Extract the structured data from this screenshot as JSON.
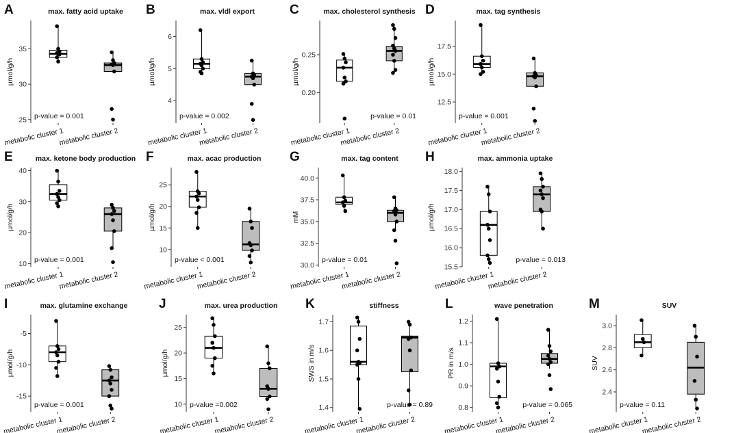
{
  "colors": {
    "box1": "#ffffff",
    "box2": "#bdbdbd",
    "point": "#000000",
    "axis": "#333333"
  },
  "chart_data": [
    {
      "type": "box",
      "panel_label": "A",
      "title": "max. fatty acid uptake",
      "ylabel": "µmol/g/h",
      "ylim": [
        24.5,
        39
      ],
      "yticks": [
        25,
        30,
        35
      ],
      "ytick_labels": [
        "25",
        "30",
        "35"
      ],
      "pvalue": "p-value = 0.001",
      "pvalue_position": "bottom-left",
      "categories": [
        "metabolic cluster 1",
        "metabolic cluster 2"
      ],
      "groups": [
        {
          "name": "metabolic cluster 1",
          "min": 33.2,
          "q1": 33.8,
          "median": 34.3,
          "q3": 34.8,
          "max": 38.2,
          "points": [
            38.2,
            35.0,
            34.6,
            34.4,
            34.3,
            34.2,
            33.8,
            33.2
          ]
        },
        {
          "name": "metabolic cluster 2",
          "min": 31.8,
          "q1": 31.8,
          "median": 32.7,
          "q3": 33.0,
          "max": 34.5,
          "points": [
            34.5,
            33.4,
            33.0,
            32.8,
            32.7,
            31.8,
            26.5,
            25.0
          ]
        }
      ]
    },
    {
      "type": "box",
      "panel_label": "B",
      "title": "max. vldl export",
      "ylabel": "µmol/g/h",
      "ylim": [
        3.3,
        6.5
      ],
      "yticks": [
        4,
        5,
        6
      ],
      "ytick_labels": [
        "4",
        "5",
        "6"
      ],
      "pvalue": "p-value = 0.002",
      "pvalue_position": "bottom-left",
      "categories": [
        "metabolic cluster 1",
        "metabolic cluster 2"
      ],
      "groups": [
        {
          "name": "metabolic cluster 1",
          "min": 4.85,
          "q1": 5.0,
          "median": 5.15,
          "q3": 5.3,
          "max": 6.2,
          "points": [
            6.2,
            5.3,
            5.2,
            5.15,
            5.1,
            5.0,
            4.9,
            4.85
          ]
        },
        {
          "name": "metabolic cluster 2",
          "min": 4.5,
          "q1": 4.5,
          "median": 4.75,
          "q3": 4.85,
          "max": 5.25,
          "points": [
            5.25,
            4.85,
            4.8,
            4.75,
            4.7,
            4.5,
            3.9,
            3.4
          ]
        }
      ]
    },
    {
      "type": "box",
      "panel_label": "C",
      "title": "max. cholesterol synthesis",
      "ylabel": "µmol/g/h",
      "ylim": [
        0.16,
        0.295
      ],
      "yticks": [
        0.2,
        0.25
      ],
      "ytick_labels": [
        "0.20",
        "0.25"
      ],
      "pvalue": "p-value = 0.01",
      "pvalue_position": "bottom-right",
      "categories": [
        "metabolic cluster 1",
        "metabolic cluster 2"
      ],
      "groups": [
        {
          "name": "metabolic cluster 1",
          "min": 0.212,
          "q1": 0.215,
          "median": 0.233,
          "q3": 0.243,
          "max": 0.251,
          "points": [
            0.251,
            0.245,
            0.24,
            0.233,
            0.22,
            0.215,
            0.212,
            0.166
          ]
        },
        {
          "name": "metabolic cluster 2",
          "min": 0.226,
          "q1": 0.242,
          "median": 0.255,
          "q3": 0.261,
          "max": 0.289,
          "points": [
            0.289,
            0.284,
            0.272,
            0.262,
            0.258,
            0.255,
            0.25,
            0.242,
            0.23,
            0.226
          ]
        }
      ]
    },
    {
      "type": "box",
      "panel_label": "D",
      "title": "max. tag synthesis",
      "ylabel": "µmol/g/h",
      "ylim": [
        10.6,
        19.8
      ],
      "yticks": [
        12.5,
        15,
        17.5
      ],
      "ytick_labels": [
        "12.5",
        "15.0",
        "17.5"
      ],
      "pvalue": "p-value = 0.001",
      "pvalue_position": "bottom-left",
      "categories": [
        "metabolic cluster 1",
        "metabolic cluster 2"
      ],
      "groups": [
        {
          "name": "metabolic cluster 1",
          "min": 15.0,
          "q1": 15.6,
          "median": 15.9,
          "q3": 16.6,
          "max": 19.4,
          "points": [
            19.4,
            16.6,
            16.2,
            15.9,
            15.6,
            15.2,
            15.0
          ]
        },
        {
          "name": "metabolic cluster 2",
          "min": 13.9,
          "q1": 13.9,
          "median": 14.8,
          "q3": 15.1,
          "max": 16.4,
          "points": [
            16.4,
            15.1,
            14.9,
            14.8,
            14.7,
            13.9,
            11.9,
            10.8
          ]
        }
      ]
    },
    {
      "type": "box",
      "panel_label": "E",
      "title": "max. ketone body production",
      "ylabel": "µmol/g/h",
      "ylim": [
        9,
        41
      ],
      "yticks": [
        10,
        20,
        30,
        40
      ],
      "ytick_labels": [
        "10",
        "20",
        "30",
        "40"
      ],
      "pvalue": "p-value = 0.001",
      "pvalue_position": "bottom-left",
      "categories": [
        "metabolic cluster 1",
        "metabolic cluster 2"
      ],
      "groups": [
        {
          "name": "metabolic cluster 1",
          "min": 28.5,
          "q1": 30.5,
          "median": 32.5,
          "q3": 35.5,
          "max": 40.0,
          "points": [
            40.0,
            36.5,
            33.5,
            32.5,
            31.5,
            30.5,
            29.5,
            28.5
          ]
        },
        {
          "name": "metabolic cluster 2",
          "min": 15.0,
          "q1": 20.5,
          "median": 26.0,
          "q3": 28.0,
          "max": 29.0,
          "points": [
            29.0,
            28.0,
            27.0,
            26.0,
            24.0,
            20.5,
            15.0,
            10.5
          ]
        }
      ]
    },
    {
      "type": "box",
      "panel_label": "F",
      "title": "max. acac production",
      "ylabel": "µmol/g/h",
      "ylim": [
        6,
        29
      ],
      "yticks": [
        10,
        15,
        20,
        25
      ],
      "ytick_labels": [
        "10",
        "15",
        "20",
        "25"
      ],
      "pvalue": "p-value < 0.001",
      "pvalue_position": "bottom-left",
      "categories": [
        "metabolic cluster 1",
        "metabolic cluster 2"
      ],
      "groups": [
        {
          "name": "metabolic cluster 1",
          "min": 15.0,
          "q1": 19.8,
          "median": 22.3,
          "q3": 23.5,
          "max": 28.0,
          "points": [
            28.0,
            23.5,
            23.0,
            22.3,
            21.5,
            19.8,
            18.5,
            15.0
          ]
        },
        {
          "name": "metabolic cluster 2",
          "min": 7.0,
          "q1": 9.8,
          "median": 11.2,
          "q3": 16.5,
          "max": 19.5,
          "points": [
            19.5,
            16.5,
            15.0,
            11.5,
            11.0,
            9.8,
            8.5,
            7.0
          ]
        }
      ]
    },
    {
      "type": "box",
      "panel_label": "G",
      "title": "max. tag content",
      "ylabel": "mM",
      "ylim": [
        29.8,
        41.2
      ],
      "yticks": [
        30,
        32.5,
        35,
        37.5,
        40
      ],
      "ytick_labels": [
        "30.0",
        "32.5",
        "35.0",
        "37.5",
        "40.0"
      ],
      "pvalue": "p-value = 0.01",
      "pvalue_position": "bottom-left",
      "categories": [
        "metabolic cluster 1",
        "metabolic cluster 2"
      ],
      "groups": [
        {
          "name": "metabolic cluster 1",
          "min": 36.2,
          "q1": 37.0,
          "median": 37.2,
          "q3": 37.8,
          "max": 40.3,
          "points": [
            40.3,
            37.8,
            37.4,
            37.2,
            36.8,
            36.2
          ]
        },
        {
          "name": "metabolic cluster 2",
          "min": 34.0,
          "q1": 35.0,
          "median": 36.0,
          "q3": 36.3,
          "max": 37.8,
          "points": [
            37.8,
            36.5,
            36.3,
            36.2,
            35.8,
            35.0,
            34.0,
            32.8,
            30.2
          ]
        }
      ]
    },
    {
      "type": "box",
      "panel_label": "H",
      "title": "max. ammonia uptake",
      "ylabel": "µmol/g/h",
      "ylim": [
        15.5,
        18.1
      ],
      "yticks": [
        15.5,
        16,
        16.5,
        17,
        17.5,
        18
      ],
      "ytick_labels": [
        "15.5",
        "16.0",
        "16.5",
        "17.0",
        "17.5",
        "18.0"
      ],
      "pvalue": "p-value = 0.013",
      "pvalue_position": "bottom-right",
      "categories": [
        "metabolic cluster 1",
        "metabolic cluster 2"
      ],
      "groups": [
        {
          "name": "metabolic cluster 1",
          "min": 15.6,
          "q1": 15.8,
          "median": 16.6,
          "q3": 16.95,
          "max": 17.6,
          "points": [
            17.6,
            17.4,
            16.95,
            16.6,
            16.5,
            16.2,
            15.8,
            15.7,
            15.6
          ]
        },
        {
          "name": "metabolic cluster 2",
          "min": 16.5,
          "q1": 16.95,
          "median": 17.4,
          "q3": 17.6,
          "max": 17.95,
          "points": [
            17.95,
            17.8,
            17.6,
            17.5,
            17.4,
            17.3,
            17.0,
            16.95,
            16.5
          ]
        }
      ]
    },
    {
      "type": "box",
      "panel_label": "I",
      "title": "max. glutamine exchange",
      "ylabel": "µmol/g/h",
      "ylim": [
        -17.5,
        -2
      ],
      "yticks": [
        -15,
        -10,
        -5
      ],
      "ytick_labels": [
        "-15",
        "-10",
        "-5"
      ],
      "pvalue": "p-value = 0.001",
      "pvalue_position": "bottom-left",
      "categories": [
        "metabolic cluster 1",
        "metabolic cluster 2"
      ],
      "groups": [
        {
          "name": "metabolic cluster 1",
          "min": -11.8,
          "q1": -9.5,
          "median": -8.0,
          "q3": -7.0,
          "max": -3.0,
          "points": [
            -3.0,
            -7.0,
            -7.5,
            -8.0,
            -8.5,
            -9.5,
            -10.5,
            -11.8
          ]
        },
        {
          "name": "metabolic cluster 2",
          "min": -15.0,
          "q1": -15.0,
          "median": -12.5,
          "q3": -10.8,
          "max": -10.2,
          "points": [
            -10.2,
            -10.8,
            -12.0,
            -12.5,
            -13.0,
            -14.0,
            -15.0,
            -16.5,
            -17.0
          ]
        }
      ]
    },
    {
      "type": "box",
      "panel_label": "J",
      "title": "max. urea production",
      "ylabel": "µmol/g/h",
      "ylim": [
        8.5,
        27.5
      ],
      "yticks": [
        10,
        15,
        20,
        25
      ],
      "ytick_labels": [
        "10",
        "15",
        "20",
        "25"
      ],
      "pvalue": "p-value =0.002",
      "pvalue_position": "bottom-left",
      "categories": [
        "metabolic cluster 1",
        "metabolic cluster 2"
      ],
      "groups": [
        {
          "name": "metabolic cluster 1",
          "min": 16.0,
          "q1": 19.0,
          "median": 21.0,
          "q3": 23.3,
          "max": 26.8,
          "points": [
            26.8,
            25.5,
            23.3,
            22.0,
            21.0,
            19.0,
            17.5,
            16.0
          ]
        },
        {
          "name": "metabolic cluster 2",
          "min": 11.5,
          "q1": 11.5,
          "median": 13.0,
          "q3": 17.0,
          "max": 21.3,
          "points": [
            21.3,
            18.0,
            17.0,
            13.5,
            13.0,
            11.5,
            11.0,
            9.0
          ]
        }
      ]
    },
    {
      "type": "box",
      "panel_label": "K",
      "title": "stiffness",
      "ylabel": "SWS in m/s",
      "ylim": [
        1.385,
        1.725
      ],
      "yticks": [
        1.4,
        1.5,
        1.6,
        1.7
      ],
      "ytick_labels": [
        "1.4",
        "1.5",
        "1.6",
        "1.7"
      ],
      "pvalue": "p-value = 0.89",
      "pvalue_position": "bottom-right",
      "categories": [
        "metabolic cluster 1",
        "metabolic cluster 2"
      ],
      "groups": [
        {
          "name": "metabolic cluster 1",
          "min": 1.395,
          "q1": 1.55,
          "median": 1.56,
          "q3": 1.685,
          "max": 1.715,
          "points": [
            1.715,
            1.7,
            1.64,
            1.6,
            1.56,
            1.555,
            1.55,
            1.5,
            1.395
          ]
        },
        {
          "name": "metabolic cluster 2",
          "min": 1.41,
          "q1": 1.525,
          "median": 1.645,
          "q3": 1.65,
          "max": 1.7,
          "points": [
            1.7,
            1.69,
            1.645,
            1.64,
            1.6,
            1.53,
            1.46,
            1.41
          ]
        }
      ]
    },
    {
      "type": "box",
      "panel_label": "L",
      "title": "wave penetration",
      "ylabel": "PR in m/s",
      "ylim": [
        0.78,
        1.23
      ],
      "yticks": [
        0.8,
        0.9,
        1.0,
        1.1,
        1.2
      ],
      "ytick_labels": [
        "0.8",
        "0.9",
        "1.0",
        "1.1",
        "1.2"
      ],
      "pvalue": "p-value = 0.065",
      "pvalue_position": "bottom-right",
      "categories": [
        "metabolic cluster 1",
        "metabolic cluster 2"
      ],
      "groups": [
        {
          "name": "metabolic cluster 1",
          "min": 0.8,
          "q1": 0.845,
          "median": 0.99,
          "q3": 1.005,
          "max": 1.21,
          "points": [
            1.21,
            1.005,
            0.99,
            0.98,
            0.92,
            0.85,
            0.82,
            0.8
          ]
        },
        {
          "name": "metabolic cluster 2",
          "min": 0.98,
          "q1": 1.005,
          "median": 1.025,
          "q3": 1.05,
          "max": 1.16,
          "points": [
            1.16,
            1.085,
            1.06,
            1.04,
            1.025,
            1.01,
            1.0,
            0.95,
            0.885
          ]
        }
      ]
    },
    {
      "type": "box",
      "panel_label": "M",
      "title": "SUV",
      "ylabel": "SUV",
      "ylim": [
        2.22,
        3.1
      ],
      "yticks": [
        2.4,
        2.6,
        2.8,
        3.0
      ],
      "ytick_labels": [
        "2.4",
        "2.6",
        "2.8",
        "3.0"
      ],
      "pvalue": "p-value = 0.11",
      "pvalue_position": "bottom-left",
      "categories": [
        "metabolic cluster 1",
        "metabolic cluster 2"
      ],
      "groups": [
        {
          "name": "metabolic cluster 1",
          "min": 2.73,
          "q1": 2.8,
          "median": 2.85,
          "q3": 2.92,
          "max": 3.05,
          "points": [
            3.05,
            2.88,
            2.85,
            2.73
          ]
        },
        {
          "name": "metabolic cluster 2",
          "min": 2.25,
          "q1": 2.38,
          "median": 2.62,
          "q3": 2.85,
          "max": 3.0,
          "points": [
            3.0,
            2.9,
            2.72,
            2.5,
            2.33,
            2.25
          ]
        }
      ]
    }
  ]
}
